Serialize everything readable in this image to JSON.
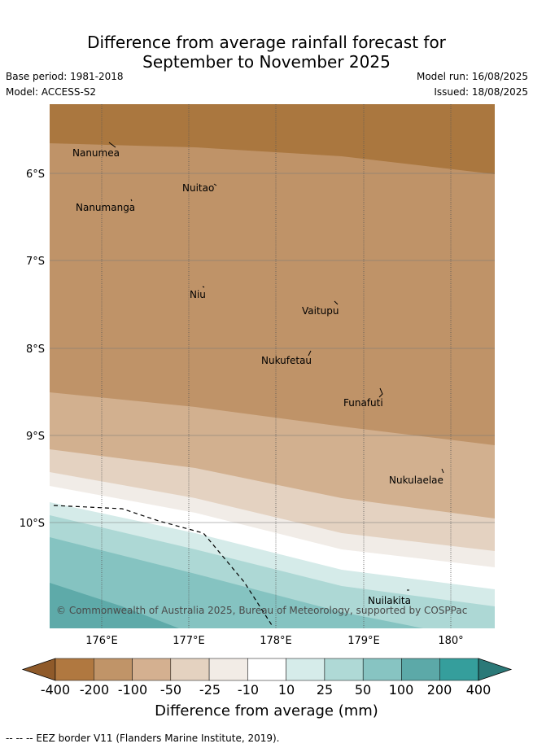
{
  "header": {
    "title_line1": "Difference from average rainfall forecast for",
    "title_line2": "September to November 2025",
    "base_period": "Base period: 1981-2018",
    "model": "Model: ACCESS-S2",
    "model_run": "Model run: 16/08/2025",
    "issued": "Issued: 18/08/2025"
  },
  "map": {
    "lon_labels": [
      "176°E",
      "177°E",
      "178°E",
      "179°E",
      "180°"
    ],
    "lat_labels": [
      "6°S",
      "7°S",
      "8°S",
      "9°S",
      "10°S"
    ],
    "places": [
      {
        "name": "Nanumea"
      },
      {
        "name": "Nuitao"
      },
      {
        "name": "Nanumanga"
      },
      {
        "name": "Niu"
      },
      {
        "name": "Vaitupu"
      },
      {
        "name": "Nukufetau"
      },
      {
        "name": "Funafuti"
      },
      {
        "name": "Nukulaelae"
      },
      {
        "name": "Nuilakita"
      }
    ],
    "copyright": "© Commonwealth of Australia 2025, Bureau of Meteorology, supported by COSPPac"
  },
  "colorbar": {
    "ticks": [
      "-400",
      "-200",
      "-100",
      "-50",
      "-25",
      "-10",
      "10",
      "25",
      "50",
      "100",
      "200",
      "400"
    ],
    "colors": [
      "#8f5a2a",
      "#b07840",
      "#c09468",
      "#d4b090",
      "#e4d2c0",
      "#f2ece6",
      "#ffffff",
      "#d6ecea",
      "#afd9d6",
      "#87c4c2",
      "#5ca9a8",
      "#359e9c",
      "#2b7978"
    ],
    "label": "Difference from average (mm)"
  },
  "footnote": "-- -- -- EEZ border V11 (Flanders Marine Institute, 2019)."
}
